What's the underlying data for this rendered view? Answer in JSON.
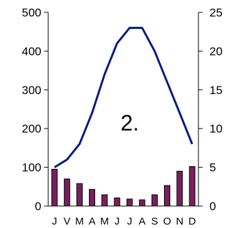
{
  "chart_data": {
    "type": "bar+line",
    "annotation": "2.",
    "categories": [
      "J",
      "V",
      "M",
      "A",
      "M",
      "J",
      "J",
      "A",
      "S",
      "O",
      "N",
      "D"
    ],
    "series": [
      {
        "kind": "bar",
        "axis": "left",
        "color": "#7a1f5c",
        "values": [
          95,
          70,
          58,
          43,
          29,
          21,
          18,
          16,
          29,
          53,
          90,
          102
        ]
      },
      {
        "kind": "line",
        "axis": "right",
        "color": "#001a80",
        "values": [
          5,
          6,
          8,
          12,
          17,
          21,
          23,
          23,
          20,
          16,
          12,
          8
        ]
      }
    ],
    "y_left": {
      "min": 0,
      "max": 500,
      "ticks": [
        "0",
        "100",
        "200",
        "300",
        "400",
        "500"
      ]
    },
    "y_right": {
      "min": 0,
      "max": 25,
      "ticks": [
        "0",
        "5",
        "10",
        "15",
        "20",
        "25"
      ]
    },
    "grid": false,
    "legend": "none"
  }
}
